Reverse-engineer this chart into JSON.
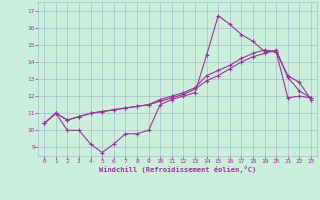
{
  "xlabel": "Windchill (Refroidissement éolien,°C)",
  "bg_color": "#cceedd",
  "grid_color": "#aabbcc",
  "line_color": "#993399",
  "xlim": [
    -0.5,
    23.5
  ],
  "ylim": [
    8.5,
    17.5
  ],
  "yticks": [
    9,
    10,
    11,
    12,
    13,
    14,
    15,
    16,
    17
  ],
  "xticks": [
    0,
    1,
    2,
    3,
    4,
    5,
    6,
    7,
    8,
    9,
    10,
    11,
    12,
    13,
    14,
    15,
    16,
    17,
    18,
    19,
    20,
    21,
    22,
    23
  ],
  "series1_x": [
    0,
    1,
    2,
    3,
    4,
    5,
    6,
    7,
    8,
    9,
    10,
    11,
    12,
    13,
    14,
    15,
    16,
    17,
    18,
    19,
    20,
    21,
    22,
    23
  ],
  "series1_y": [
    10.4,
    11.0,
    10.0,
    10.0,
    9.2,
    8.7,
    9.2,
    9.8,
    9.8,
    10.0,
    11.5,
    11.8,
    12.0,
    12.2,
    14.4,
    16.7,
    16.2,
    15.6,
    15.2,
    14.6,
    14.6,
    13.2,
    12.8,
    11.8
  ],
  "series2_x": [
    0,
    1,
    2,
    3,
    4,
    5,
    6,
    7,
    8,
    9,
    10,
    11,
    12,
    13,
    14,
    15,
    16,
    17,
    18,
    19,
    20,
    21,
    22,
    23
  ],
  "series2_y": [
    10.4,
    11.0,
    10.6,
    10.8,
    11.0,
    11.1,
    11.2,
    11.3,
    11.4,
    11.5,
    11.8,
    12.0,
    12.2,
    12.5,
    13.2,
    13.5,
    13.8,
    14.2,
    14.5,
    14.7,
    14.6,
    11.9,
    12.0,
    11.9
  ],
  "series3_x": [
    0,
    1,
    2,
    3,
    4,
    5,
    6,
    7,
    8,
    9,
    10,
    11,
    12,
    13,
    14,
    15,
    16,
    17,
    18,
    19,
    20,
    21,
    22,
    23
  ],
  "series3_y": [
    10.4,
    11.0,
    10.6,
    10.8,
    11.0,
    11.1,
    11.2,
    11.3,
    11.4,
    11.5,
    11.7,
    11.9,
    12.1,
    12.4,
    12.9,
    13.2,
    13.6,
    14.0,
    14.3,
    14.5,
    14.7,
    13.1,
    12.3,
    11.9
  ]
}
